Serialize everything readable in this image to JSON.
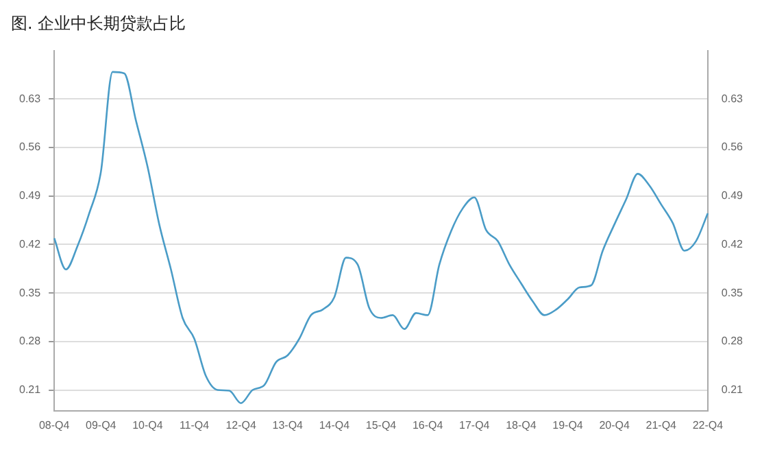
{
  "chart_data": {
    "type": "line",
    "title": "图. 企业中长期贷款占比",
    "categories": [
      "08-Q4",
      null,
      null,
      null,
      "09-Q4",
      null,
      null,
      null,
      "10-Q4",
      null,
      null,
      null,
      "11-Q4",
      null,
      null,
      null,
      "12-Q4",
      null,
      null,
      null,
      "13-Q4",
      null,
      null,
      null,
      "14-Q4",
      null,
      null,
      null,
      "15-Q4",
      null,
      null,
      null,
      "16-Q4",
      null,
      null,
      null,
      "17-Q4",
      null,
      null,
      null,
      "18-Q4",
      null,
      null,
      null,
      "19-Q4",
      null,
      null,
      null,
      "20-Q4",
      null,
      null,
      null,
      "21-Q4",
      null,
      null,
      null,
      "22-Q4"
    ],
    "series": [
      {
        "color": "#4a9cc7",
        "values": [
          0.429,
          0.384,
          0.418,
          0.465,
          0.525,
          0.669,
          0.667,
          0.599,
          0.532,
          0.449,
          0.384,
          0.314,
          0.284,
          0.23,
          0.21,
          0.209,
          0.191,
          0.21,
          0.217,
          0.25,
          0.26,
          0.284,
          0.318,
          0.326,
          0.344,
          0.401,
          0.391,
          0.328,
          0.314,
          0.318,
          0.298,
          0.321,
          0.318,
          0.391,
          0.439,
          0.472,
          0.488,
          0.441,
          0.425,
          0.391,
          0.364,
          0.338,
          0.318,
          0.326,
          0.341,
          0.358,
          0.361,
          0.411,
          0.449,
          0.485,
          0.522,
          0.505,
          0.478,
          0.451,
          0.411,
          0.425,
          0.465
        ]
      }
    ],
    "ylim": [
      0.18,
      0.7
    ],
    "yticks": [
      0.21,
      0.28,
      0.35,
      0.42,
      0.49,
      0.56,
      0.63
    ],
    "y2lim": [
      0.18,
      0.7
    ],
    "y2ticks": [
      0.21,
      0.28,
      0.35,
      0.42,
      0.49,
      0.56,
      0.63
    ],
    "grid": "y",
    "legend": false,
    "marker": "none",
    "line_style": "solid"
  }
}
